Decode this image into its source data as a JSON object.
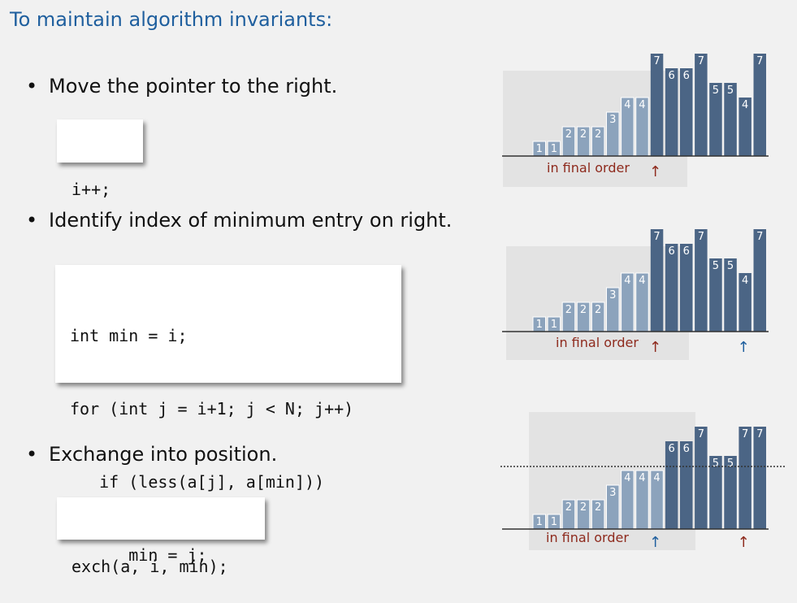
{
  "title": "To maintain algorithm invariants:",
  "colors": {
    "title": "#1f5f9e",
    "dark_bar": "#4b6585",
    "light_bar": "#8ca3bc",
    "light_bar_outline": "#ffffff",
    "shade": "#e3e3e3",
    "caption_red": "#8e2a1d",
    "arrow_red": "#8e2a1d",
    "arrow_blue": "#1f5f9e"
  },
  "steps": [
    {
      "bullet": "Move the pointer to the right.",
      "code": [
        "i++;"
      ],
      "diagram": {
        "values": [
          1,
          1,
          2,
          2,
          2,
          3,
          4,
          4,
          7,
          6,
          6,
          7,
          5,
          5,
          4,
          7
        ],
        "sorted_count": 8,
        "dotted_line": false,
        "caption": "in final order",
        "arrows": [
          {
            "index": 8,
            "glyph": "↑",
            "color": "red"
          }
        ]
      }
    },
    {
      "bullet": "Identify index of minimum entry on right.",
      "code": [
        "int min = i;",
        "for (int j = i+1; j < N; j++)",
        "   if (less(a[j], a[min]))",
        "      min = j;"
      ],
      "diagram": {
        "values": [
          1,
          1,
          2,
          2,
          2,
          3,
          4,
          4,
          7,
          6,
          6,
          7,
          5,
          5,
          4,
          7
        ],
        "sorted_count": 8,
        "dotted_line": false,
        "caption": "in final order",
        "arrows": [
          {
            "index": 8,
            "glyph": "↑",
            "color": "red"
          },
          {
            "index": 14,
            "glyph": "↑",
            "color": "blue"
          }
        ]
      }
    },
    {
      "bullet": "Exchange into position.",
      "code": [
        "exch(a, i, min);"
      ],
      "diagram": {
        "values": [
          1,
          1,
          2,
          2,
          2,
          3,
          4,
          4,
          4,
          6,
          6,
          7,
          5,
          5,
          7,
          7
        ],
        "sorted_count": 9,
        "dotted_line": true,
        "caption": "in final order",
        "arrows": [
          {
            "index": 8,
            "glyph": "↑",
            "color": "blue"
          },
          {
            "index": 14,
            "glyph": "↑",
            "color": "red"
          }
        ]
      }
    }
  ]
}
